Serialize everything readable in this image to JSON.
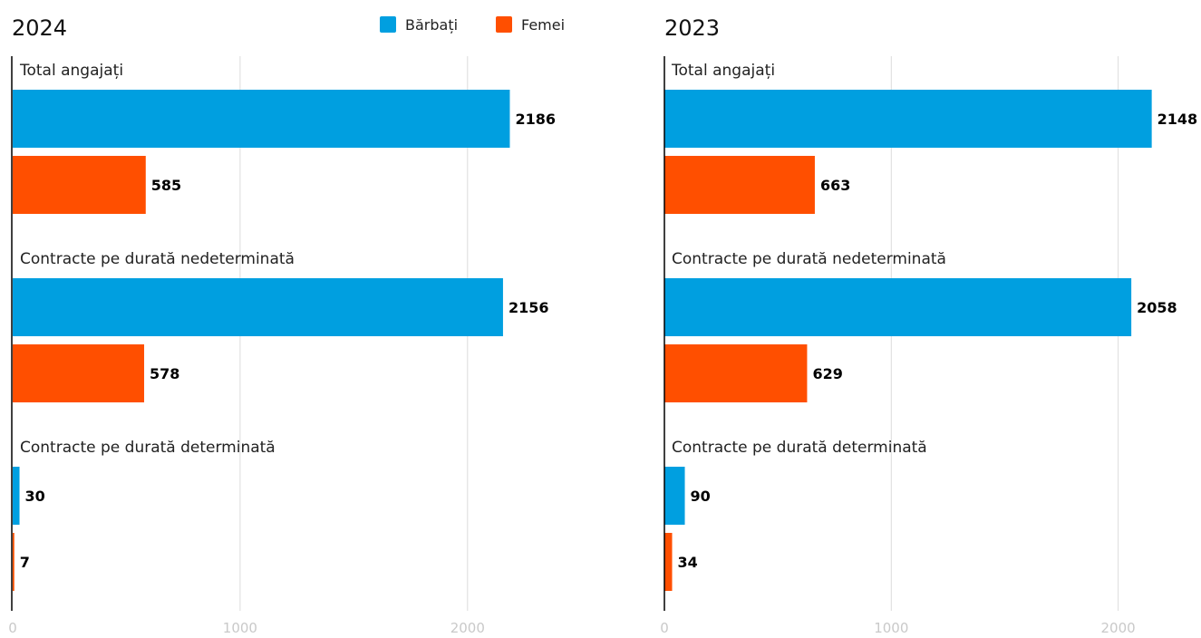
{
  "colors": {
    "barbati": "#009FE0",
    "femei": "#FF4F00",
    "grid": "#dcdcdc",
    "axis": "#000000"
  },
  "legend": [
    {
      "name": "Bărbați",
      "color": "#009FE0"
    },
    {
      "name": "Femei",
      "color": "#FF4F00"
    }
  ],
  "chart_data": [
    {
      "type": "bar",
      "orientation": "horizontal",
      "title": "2024",
      "categories": [
        "Total angajați",
        "Contracte pe durată nedeterminată",
        "Contracte pe durată determinată"
      ],
      "series": [
        {
          "name": "Bărbați",
          "values": [
            2186,
            2156,
            30
          ]
        },
        {
          "name": "Femei",
          "values": [
            585,
            578,
            7
          ]
        }
      ],
      "xlim": [
        0,
        2500
      ],
      "ticks": [
        0,
        1000,
        2000
      ],
      "grid": true,
      "legend_position": "top"
    },
    {
      "type": "bar",
      "orientation": "horizontal",
      "title": "2023",
      "categories": [
        "Total angajați",
        "Contracte pe durată nedeterminată",
        "Contracte pe durată determinată"
      ],
      "series": [
        {
          "name": "Bărbați",
          "values": [
            2148,
            2058,
            90
          ]
        },
        {
          "name": "Femei",
          "values": [
            663,
            629,
            34
          ]
        }
      ],
      "xlim": [
        0,
        2500
      ],
      "ticks": [
        0,
        1000,
        2000
      ],
      "grid": true,
      "legend_position": "top"
    }
  ]
}
